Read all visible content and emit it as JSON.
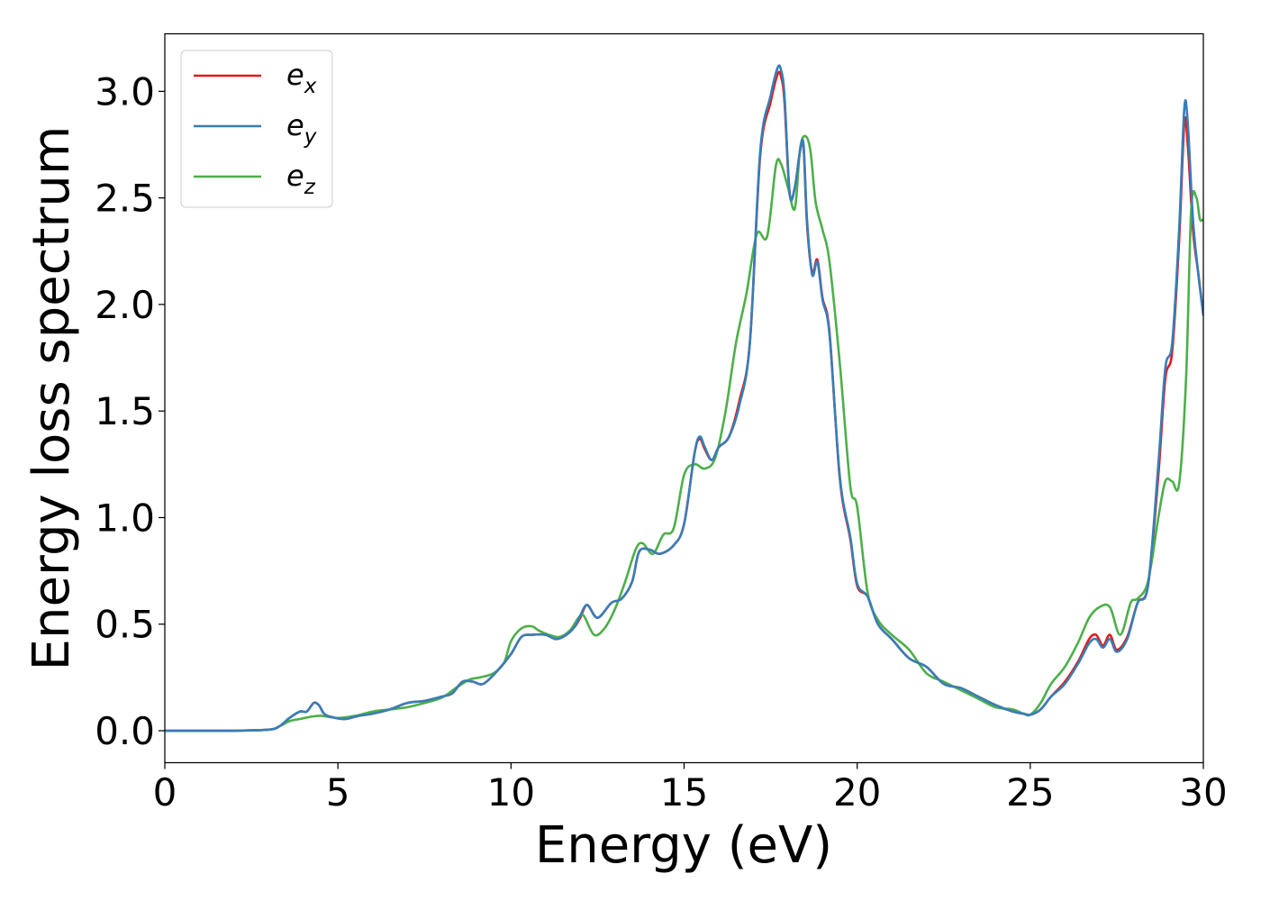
{
  "chart_data": {
    "type": "line",
    "title": "",
    "xlabel": "Energy (eV)",
    "ylabel": "Energy loss spectrum",
    "xlim": [
      0,
      30
    ],
    "ylim": [
      -0.15,
      3.27
    ],
    "xticks": [
      0,
      5,
      10,
      15,
      20,
      25,
      30
    ],
    "xtick_labels": [
      "0",
      "5",
      "10",
      "15",
      "20",
      "25",
      "30"
    ],
    "yticks": [
      0.0,
      0.5,
      1.0,
      1.5,
      2.0,
      2.5,
      3.0
    ],
    "ytick_labels": [
      "0.0",
      "0.5",
      "1.0",
      "1.5",
      "2.0",
      "2.5",
      "3.0"
    ],
    "grid": false,
    "legend_position": "top-left",
    "series": [
      {
        "name": "e_x",
        "legend_base": "e",
        "legend_sub": "x",
        "color": "#e41a1c",
        "x": [
          0,
          1,
          2,
          3,
          3.3,
          3.6,
          3.9,
          4.1,
          4.3,
          4.45,
          4.6,
          4.8,
          5.2,
          5.6,
          6.0,
          6.5,
          7.0,
          7.5,
          8.0,
          8.3,
          8.6,
          8.9,
          9.2,
          9.6,
          10.0,
          10.3,
          10.6,
          11.0,
          11.3,
          11.6,
          11.85,
          12.0,
          12.2,
          12.5,
          12.9,
          13.2,
          13.5,
          13.7,
          14.0,
          14.3,
          14.7,
          15.0,
          15.3,
          15.45,
          15.6,
          15.8,
          16.0,
          16.3,
          16.6,
          16.9,
          17.2,
          17.5,
          17.7,
          17.8,
          17.9,
          18.05,
          18.2,
          18.35,
          18.45,
          18.55,
          18.7,
          18.85,
          19.0,
          19.2,
          19.5,
          19.8,
          20.0,
          20.3,
          20.6,
          21.0,
          21.5,
          22.0,
          22.5,
          23.0,
          23.5,
          24.0,
          24.5,
          24.8,
          25.0,
          25.3,
          25.6,
          26.0,
          26.4,
          26.7,
          26.9,
          27.1,
          27.3,
          27.5,
          27.8,
          28.1,
          28.4,
          28.7,
          28.9,
          29.1,
          29.3,
          29.45,
          29.55,
          29.7,
          29.85,
          30.0
        ],
        "y": [
          0.0,
          0.0,
          0.0,
          0.005,
          0.02,
          0.06,
          0.09,
          0.09,
          0.13,
          0.12,
          0.08,
          0.065,
          0.055,
          0.07,
          0.08,
          0.1,
          0.13,
          0.14,
          0.16,
          0.175,
          0.23,
          0.23,
          0.22,
          0.28,
          0.36,
          0.44,
          0.45,
          0.45,
          0.43,
          0.45,
          0.49,
          0.53,
          0.59,
          0.53,
          0.6,
          0.62,
          0.7,
          0.84,
          0.85,
          0.83,
          0.87,
          0.97,
          1.3,
          1.37,
          1.32,
          1.27,
          1.33,
          1.38,
          1.55,
          1.82,
          2.7,
          2.95,
          3.08,
          3.07,
          2.95,
          2.52,
          2.55,
          2.72,
          2.74,
          2.38,
          2.15,
          2.21,
          2.03,
          1.87,
          1.18,
          0.9,
          0.68,
          0.63,
          0.5,
          0.43,
          0.34,
          0.3,
          0.22,
          0.2,
          0.16,
          0.12,
          0.09,
          0.08,
          0.075,
          0.1,
          0.16,
          0.23,
          0.33,
          0.43,
          0.45,
          0.4,
          0.45,
          0.38,
          0.44,
          0.6,
          0.68,
          1.2,
          1.65,
          1.78,
          2.3,
          2.85,
          2.75,
          2.35,
          2.15,
          1.95
        ]
      },
      {
        "name": "e_y",
        "legend_base": "e",
        "legend_sub": "y",
        "color": "#377eb8",
        "x": [
          0,
          1,
          2,
          3,
          3.3,
          3.6,
          3.9,
          4.1,
          4.3,
          4.45,
          4.6,
          4.8,
          5.2,
          5.6,
          6.0,
          6.5,
          7.0,
          7.5,
          8.0,
          8.3,
          8.6,
          8.9,
          9.2,
          9.6,
          10.0,
          10.3,
          10.6,
          11.0,
          11.3,
          11.6,
          11.85,
          12.0,
          12.2,
          12.5,
          12.9,
          13.2,
          13.5,
          13.7,
          14.0,
          14.3,
          14.7,
          15.0,
          15.3,
          15.45,
          15.6,
          15.8,
          16.0,
          16.3,
          16.6,
          16.9,
          17.2,
          17.5,
          17.7,
          17.8,
          17.9,
          18.05,
          18.2,
          18.35,
          18.45,
          18.55,
          18.7,
          18.85,
          19.0,
          19.2,
          19.5,
          19.8,
          20.0,
          20.3,
          20.6,
          21.0,
          21.5,
          22.0,
          22.5,
          23.0,
          23.5,
          24.0,
          24.5,
          24.8,
          25.0,
          25.3,
          25.6,
          26.0,
          26.4,
          26.7,
          26.9,
          27.1,
          27.3,
          27.5,
          27.8,
          28.1,
          28.4,
          28.7,
          28.9,
          29.1,
          29.3,
          29.45,
          29.55,
          29.7,
          29.85,
          30.0
        ],
        "y": [
          0.0,
          0.0,
          0.0,
          0.005,
          0.02,
          0.06,
          0.09,
          0.09,
          0.13,
          0.12,
          0.08,
          0.065,
          0.055,
          0.07,
          0.08,
          0.1,
          0.13,
          0.14,
          0.16,
          0.175,
          0.23,
          0.23,
          0.22,
          0.28,
          0.36,
          0.44,
          0.45,
          0.45,
          0.43,
          0.45,
          0.49,
          0.54,
          0.59,
          0.53,
          0.6,
          0.62,
          0.7,
          0.84,
          0.85,
          0.83,
          0.87,
          0.97,
          1.3,
          1.38,
          1.33,
          1.27,
          1.33,
          1.38,
          1.53,
          1.82,
          2.72,
          2.98,
          3.11,
          3.1,
          2.98,
          2.52,
          2.55,
          2.72,
          2.75,
          2.4,
          2.14,
          2.2,
          2.02,
          1.86,
          1.19,
          0.91,
          0.69,
          0.63,
          0.5,
          0.43,
          0.34,
          0.3,
          0.22,
          0.2,
          0.16,
          0.12,
          0.09,
          0.08,
          0.075,
          0.1,
          0.16,
          0.22,
          0.32,
          0.41,
          0.43,
          0.39,
          0.43,
          0.37,
          0.43,
          0.6,
          0.68,
          1.25,
          1.7,
          1.82,
          2.35,
          2.92,
          2.85,
          2.4,
          2.15,
          1.95
        ]
      },
      {
        "name": "e_z",
        "legend_base": "e",
        "legend_sub": "z",
        "color": "#4daf4a",
        "x": [
          0,
          1,
          2,
          3,
          3.3,
          3.6,
          3.9,
          4.2,
          4.5,
          5.0,
          5.5,
          6.0,
          6.5,
          7.0,
          7.5,
          8.0,
          8.4,
          8.8,
          9.1,
          9.5,
          9.8,
          10.0,
          10.3,
          10.6,
          10.8,
          11.1,
          11.4,
          11.7,
          11.95,
          12.1,
          12.4,
          12.7,
          13.0,
          13.3,
          13.6,
          13.8,
          14.1,
          14.4,
          14.7,
          15.0,
          15.3,
          15.6,
          15.9,
          16.2,
          16.5,
          16.8,
          17.1,
          17.4,
          17.65,
          17.8,
          18.0,
          18.2,
          18.35,
          18.5,
          18.65,
          18.8,
          19.0,
          19.2,
          19.5,
          19.8,
          20.0,
          20.3,
          20.6,
          21.0,
          21.5,
          22.0,
          22.5,
          23.0,
          23.5,
          24.0,
          24.5,
          24.8,
          25.0,
          25.3,
          25.6,
          26.0,
          26.4,
          26.7,
          27.0,
          27.3,
          27.6,
          27.9,
          28.1,
          28.4,
          28.7,
          28.9,
          29.1,
          29.3,
          29.5,
          29.65,
          29.8,
          29.9,
          30.0
        ],
        "y": [
          0.0,
          0.0,
          0.0,
          0.005,
          0.02,
          0.045,
          0.055,
          0.065,
          0.07,
          0.06,
          0.07,
          0.09,
          0.1,
          0.11,
          0.13,
          0.155,
          0.2,
          0.24,
          0.25,
          0.27,
          0.32,
          0.42,
          0.48,
          0.49,
          0.47,
          0.45,
          0.44,
          0.47,
          0.53,
          0.54,
          0.45,
          0.48,
          0.57,
          0.7,
          0.85,
          0.88,
          0.83,
          0.92,
          0.95,
          1.2,
          1.25,
          1.23,
          1.28,
          1.5,
          1.82,
          2.05,
          2.33,
          2.32,
          2.65,
          2.66,
          2.55,
          2.45,
          2.73,
          2.79,
          2.72,
          2.48,
          2.35,
          2.2,
          1.72,
          1.15,
          1.05,
          0.65,
          0.52,
          0.45,
          0.38,
          0.27,
          0.23,
          0.19,
          0.15,
          0.11,
          0.1,
          0.08,
          0.075,
          0.13,
          0.22,
          0.3,
          0.42,
          0.53,
          0.58,
          0.58,
          0.45,
          0.6,
          0.62,
          0.7,
          1.0,
          1.17,
          1.17,
          1.16,
          1.65,
          2.45,
          2.5,
          2.4,
          2.4
        ]
      }
    ]
  }
}
